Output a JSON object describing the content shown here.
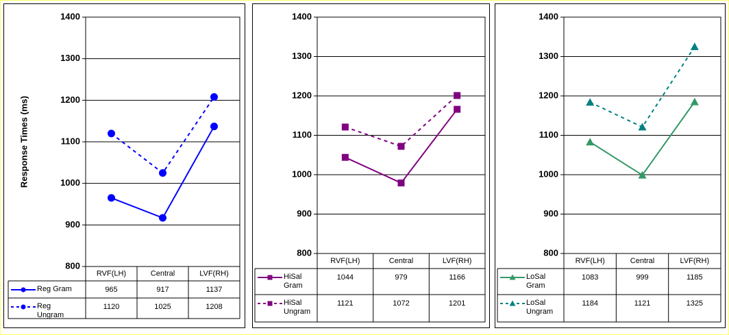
{
  "chart_data": [
    {
      "type": "line",
      "y_label": "Response Times (ms)",
      "categories": [
        "RVF(LH)",
        "Central",
        "LVF(RH)"
      ],
      "ylim": [
        800,
        1400
      ],
      "yticks": [
        800,
        900,
        1000,
        1100,
        1200,
        1300,
        1400
      ],
      "grid": true,
      "series": [
        {
          "name": "Reg Gram",
          "color": "#0000ff",
          "marker": "circle",
          "dashed": false,
          "values": [
            965,
            917,
            1137
          ]
        },
        {
          "name": "Reg Ungram",
          "color": "#0000ff",
          "marker": "circle",
          "dashed": true,
          "values": [
            1120,
            1025,
            1208
          ]
        }
      ]
    },
    {
      "type": "line",
      "categories": [
        "RVF(LH)",
        "Central",
        "LVF(RH)"
      ],
      "ylim": [
        800,
        1400
      ],
      "yticks": [
        800,
        900,
        1000,
        1100,
        1200,
        1300,
        1400
      ],
      "grid": true,
      "series": [
        {
          "name": "HiSal Gram",
          "color": "#800080",
          "marker": "square",
          "dashed": false,
          "values": [
            1044,
            979,
            1166
          ]
        },
        {
          "name": "HiSal Ungram",
          "color": "#800080",
          "marker": "square",
          "dashed": true,
          "values": [
            1121,
            1072,
            1201
          ]
        }
      ]
    },
    {
      "type": "line",
      "categories": [
        "RVF(LH)",
        "Central",
        "LVF(RH)"
      ],
      "ylim": [
        800,
        1400
      ],
      "yticks": [
        800,
        900,
        1000,
        1100,
        1200,
        1300,
        1400
      ],
      "grid": true,
      "series": [
        {
          "name": "LoSal Gram",
          "color": "#339966",
          "marker": "triangle",
          "dashed": false,
          "values": [
            1083,
            999,
            1185
          ]
        },
        {
          "name": "LoSal Ungram",
          "color": "#008080",
          "marker": "triangle",
          "dashed": true,
          "values": [
            1184,
            1121,
            1325
          ]
        }
      ]
    }
  ]
}
